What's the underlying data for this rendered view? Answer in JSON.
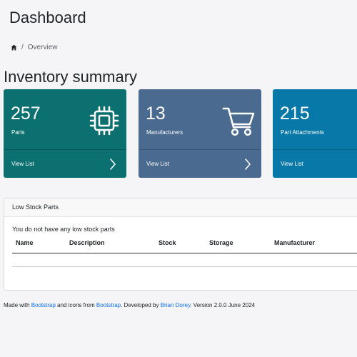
{
  "header": {
    "title": "Dashboard"
  },
  "breadcrumb": {
    "current": "Overview",
    "separator": "/"
  },
  "summary": {
    "title": "Inventory summary",
    "cards": [
      {
        "count": "257",
        "label": "Parts",
        "link": "View List",
        "color": "#0c7070",
        "icon": "cpu-icon"
      },
      {
        "count": "13",
        "label": "Manufacturers",
        "link": "View List",
        "color": "#4a6a8f",
        "icon": "cart-icon"
      },
      {
        "count": "215",
        "label": "Part Attachments",
        "link": "View List",
        "color": "#0878a8",
        "icon": "paperclip-icon"
      }
    ]
  },
  "low_stock": {
    "title": "Low Stock Parts",
    "empty_message": "You do not have any low stock parts",
    "columns": [
      "Name",
      "Description",
      "Stock",
      "Storage",
      "Manufacturer"
    ]
  },
  "footer": {
    "made_with": "Made with ",
    "bootstrap1": "Bootstrap",
    "icons_from": " and icons from ",
    "bootstrap2": "Bootstrap",
    "developed_by": ". Developed by ",
    "author": "Brian Dorey",
    "version": ". Version 2.0.0 June 2024"
  }
}
